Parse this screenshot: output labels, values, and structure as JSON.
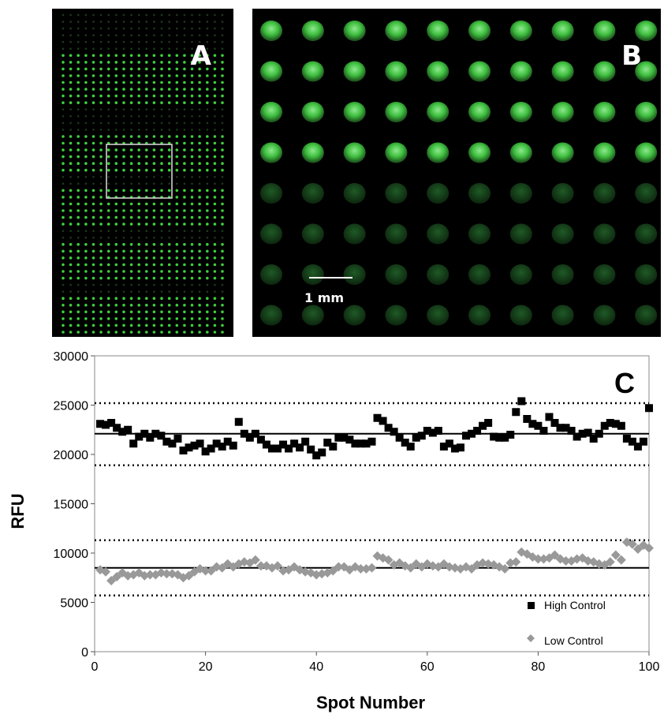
{
  "panels": {
    "a": {
      "label": "A",
      "spot_color": "#3ecf3e"
    },
    "b": {
      "label": "B",
      "scale_bar_label": "1 mm",
      "spot_color": "#3fbf3f"
    }
  },
  "chart_data": {
    "type": "scatter",
    "panel_label": "C",
    "xlabel": "Spot Number",
    "ylabel": "RFU",
    "xlim": [
      0,
      100
    ],
    "ylim": [
      0,
      30000
    ],
    "x_ticks": [
      "0",
      "20",
      "40",
      "60",
      "80",
      "100"
    ],
    "y_ticks": [
      "0",
      "5000",
      "10000",
      "15000",
      "20000",
      "25000",
      "30000"
    ],
    "grid": false,
    "legend_position": "bottom-right",
    "series": [
      {
        "name": "High Control",
        "marker": "square",
        "color": "#000000",
        "mean": 22100,
        "limits": [
          18900,
          25200
        ],
        "x": [
          1,
          2,
          3,
          4,
          5,
          6,
          7,
          8,
          9,
          10,
          11,
          12,
          13,
          14,
          15,
          16,
          17,
          18,
          19,
          20,
          21,
          22,
          23,
          24,
          25,
          26,
          27,
          28,
          29,
          30,
          31,
          32,
          33,
          34,
          35,
          36,
          37,
          38,
          39,
          40,
          41,
          42,
          43,
          44,
          45,
          46,
          47,
          48,
          49,
          50,
          51,
          52,
          53,
          54,
          55,
          56,
          57,
          58,
          59,
          60,
          61,
          62,
          63,
          64,
          65,
          66,
          67,
          68,
          69,
          70,
          71,
          72,
          73,
          74,
          75,
          76,
          77,
          78,
          79,
          80,
          81,
          82,
          83,
          84,
          85,
          86,
          87,
          88,
          89,
          90,
          91,
          92,
          93,
          94,
          95,
          96,
          97,
          98,
          99,
          100
        ],
        "y": [
          23100,
          23000,
          23200,
          22700,
          22300,
          22500,
          21100,
          21800,
          22100,
          21700,
          22100,
          21900,
          21300,
          21100,
          21600,
          20400,
          20700,
          20900,
          21100,
          20300,
          20600,
          21100,
          20800,
          21300,
          20900,
          23300,
          22100,
          21700,
          22100,
          21500,
          21000,
          20600,
          20600,
          21000,
          20600,
          21100,
          20700,
          21300,
          20500,
          19900,
          20200,
          21200,
          20800,
          21700,
          21700,
          21500,
          21100,
          21100,
          21100,
          21300,
          23700,
          23400,
          22700,
          22300,
          21700,
          21200,
          20800,
          21700,
          21900,
          22400,
          22200,
          22400,
          20800,
          21100,
          20600,
          20700,
          21900,
          22100,
          22400,
          22900,
          23200,
          21800,
          21700,
          21700,
          22000,
          24300,
          25400,
          23600,
          23100,
          22900,
          22400,
          23800,
          23200,
          22700,
          22700,
          22400,
          21800,
          22100,
          22200,
          21600,
          22100,
          22900,
          23200,
          23100,
          22900,
          21600,
          21300,
          20800,
          21300,
          24700
        ]
      },
      {
        "name": "Low Control",
        "marker": "diamond",
        "color": "#999999",
        "mean": 8500,
        "limits": [
          5700,
          11300
        ],
        "x": [
          1,
          2,
          3,
          4,
          5,
          6,
          7,
          8,
          9,
          10,
          11,
          12,
          13,
          14,
          15,
          16,
          17,
          18,
          19,
          20,
          21,
          22,
          23,
          24,
          25,
          26,
          27,
          28,
          29,
          30,
          31,
          32,
          33,
          34,
          35,
          36,
          37,
          38,
          39,
          40,
          41,
          42,
          43,
          44,
          45,
          46,
          47,
          48,
          49,
          50,
          51,
          52,
          53,
          54,
          55,
          56,
          57,
          58,
          59,
          60,
          61,
          62,
          63,
          64,
          65,
          66,
          67,
          68,
          69,
          70,
          71,
          72,
          73,
          74,
          75,
          76,
          77,
          78,
          79,
          80,
          81,
          82,
          83,
          84,
          85,
          86,
          87,
          88,
          89,
          90,
          91,
          92,
          93,
          94,
          95,
          96,
          97,
          98,
          99,
          100
        ],
        "y": [
          8300,
          8100,
          7200,
          7600,
          8000,
          7700,
          7800,
          8000,
          7700,
          7800,
          7800,
          8000,
          7900,
          7900,
          7800,
          7500,
          7700,
          8100,
          8400,
          8200,
          8200,
          8600,
          8500,
          8900,
          8600,
          8900,
          9100,
          9000,
          9300,
          8700,
          8700,
          8500,
          8700,
          8200,
          8300,
          8600,
          8300,
          8100,
          8000,
          7800,
          7900,
          8000,
          8200,
          8600,
          8600,
          8300,
          8600,
          8400,
          8400,
          8500,
          9700,
          9500,
          9300,
          8800,
          9000,
          8700,
          8500,
          8900,
          8600,
          8900,
          8700,
          8600,
          8900,
          8600,
          8500,
          8400,
          8600,
          8400,
          8800,
          9000,
          8900,
          8800,
          8600,
          8400,
          9000,
          9100,
          10100,
          9900,
          9600,
          9400,
          9400,
          9500,
          9800,
          9400,
          9200,
          9200,
          9400,
          9500,
          9200,
          9100,
          8900,
          8800,
          9100,
          9800,
          9300,
          11100,
          10900,
          10400,
          10800,
          10500
        ]
      }
    ]
  }
}
